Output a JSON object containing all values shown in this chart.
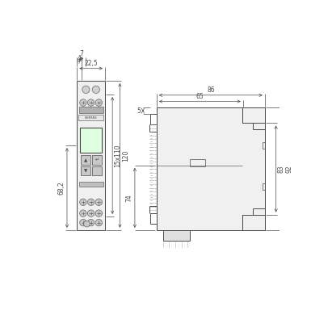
{
  "bg_color": "#ffffff",
  "line_color": "#4a4a4a",
  "fig_size": [
    3.85,
    3.85
  ],
  "dpi": 100,
  "lw": 0.7,
  "lw_thin": 0.4,
  "lw_dim": 0.5,
  "font_size": 5.5,
  "body_fill": "#f0f0f0",
  "dim_color": "#4a4a4a"
}
